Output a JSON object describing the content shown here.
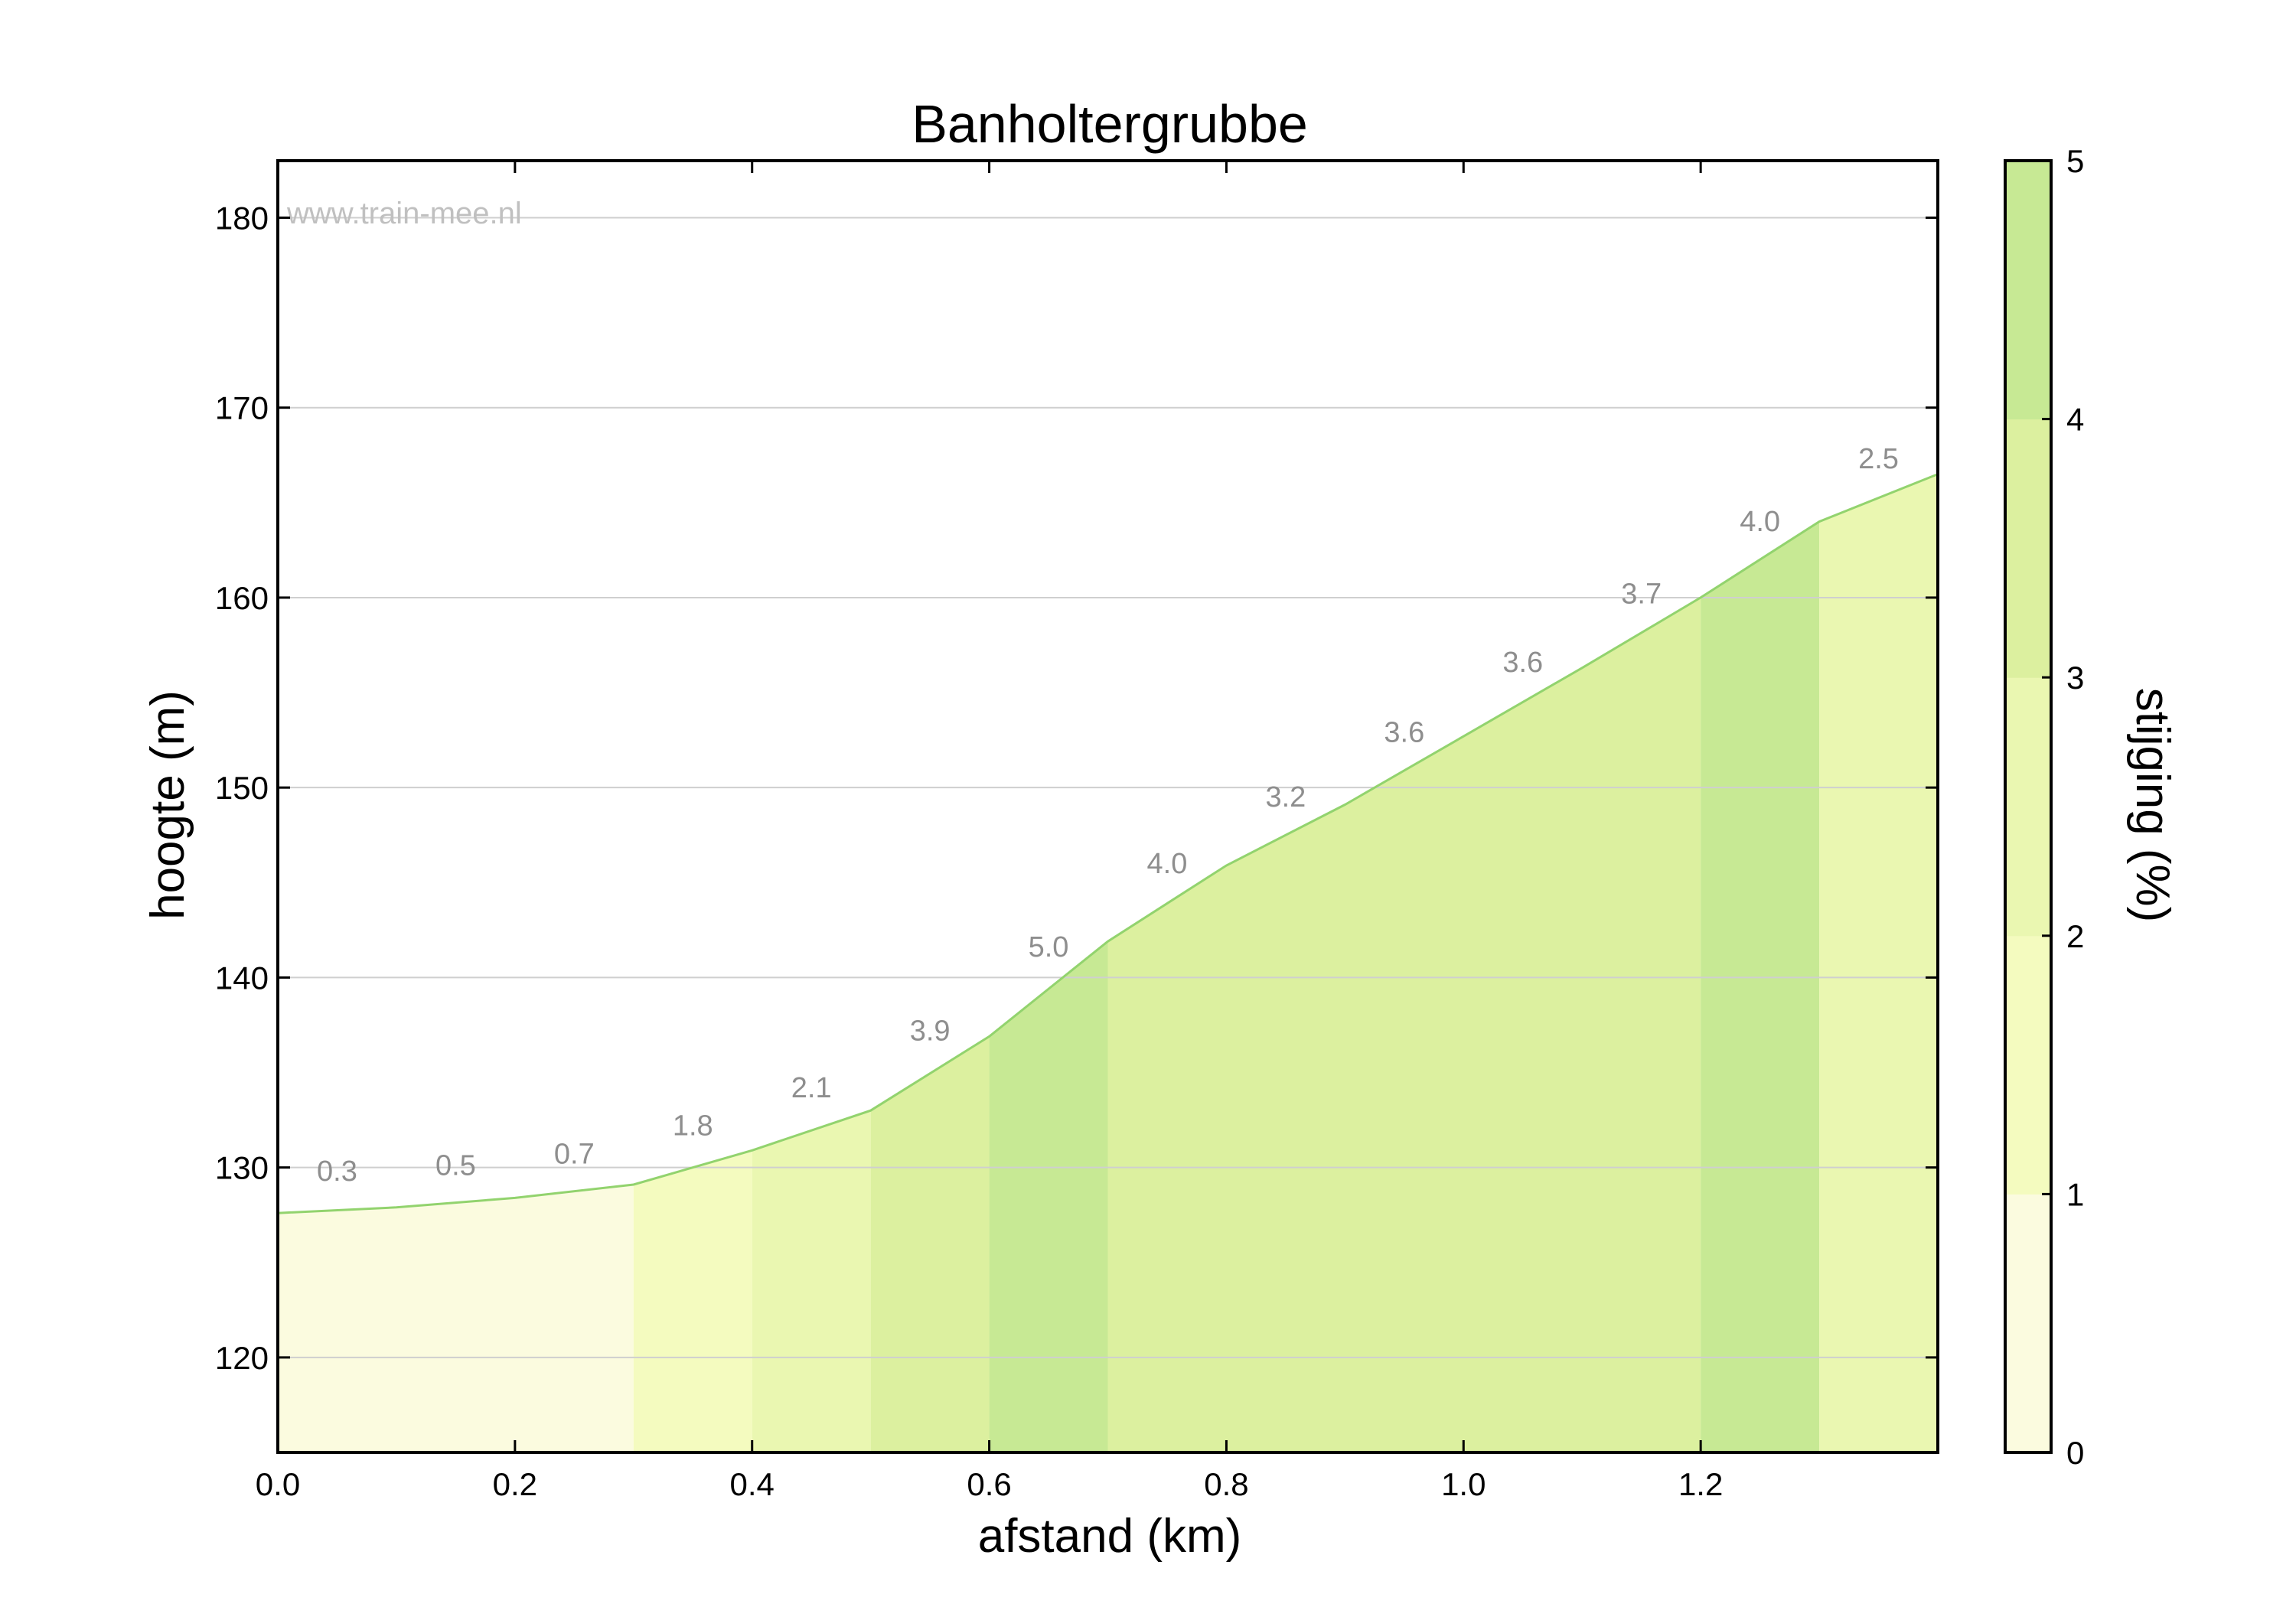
{
  "chart_data": {
    "type": "area",
    "title": "Banholtergrubbe",
    "xlabel": "afstand (km)",
    "ylabel": "hoogte (m)",
    "watermark": "www.train-mee.nl",
    "xlim": [
      0,
      1.4
    ],
    "ylim": [
      115,
      183
    ],
    "xticks": [
      "0.0",
      "0.2",
      "0.4",
      "0.6",
      "0.8",
      "1.0",
      "1.2"
    ],
    "yticks": [
      "120",
      "130",
      "140",
      "150",
      "160",
      "170",
      "180"
    ],
    "grid": "horizontal",
    "profile": {
      "x": [
        0.0,
        0.1,
        0.2,
        0.3,
        0.4,
        0.5,
        0.6,
        0.7,
        0.8,
        0.9,
        1.0,
        1.1,
        1.2,
        1.3,
        1.4
      ],
      "y": [
        127.6,
        127.9,
        128.4,
        129.1,
        130.9,
        133.0,
        136.9,
        141.9,
        145.9,
        149.1,
        152.7,
        156.3,
        160.0,
        164.0,
        166.5
      ]
    },
    "segments": [
      {
        "x0": 0.0,
        "x1": 0.3,
        "gradient": null,
        "color": "#fbfbdf"
      },
      {
        "x0": 0.3,
        "x1": 0.4,
        "gradient": 1.8,
        "color": "#f4fbbf"
      },
      {
        "x0": 0.4,
        "x1": 0.5,
        "gradient": 2.1,
        "color": "#eaf7b1"
      },
      {
        "x0": 0.5,
        "x1": 0.6,
        "gradient": 3.9,
        "color": "#dcf09f"
      },
      {
        "x0": 0.6,
        "x1": 0.7,
        "gradient": 5.0,
        "color": "#c7e994"
      },
      {
        "x0": 0.7,
        "x1": 1.2,
        "gradient": null,
        "color": "#dcf09f"
      },
      {
        "x0": 1.2,
        "x1": 1.3,
        "gradient": 4.0,
        "color": "#c7e994"
      },
      {
        "x0": 1.3,
        "x1": 1.4,
        "gradient": 2.5,
        "color": "#eaf7b1"
      }
    ],
    "slope_labels": [
      {
        "x": 0.05,
        "y": 129.3,
        "text": "0.3"
      },
      {
        "x": 0.15,
        "y": 129.6,
        "text": "0.5"
      },
      {
        "x": 0.25,
        "y": 130.2,
        "text": "0.7"
      },
      {
        "x": 0.35,
        "y": 131.7,
        "text": "1.8"
      },
      {
        "x": 0.45,
        "y": 133.7,
        "text": "2.1"
      },
      {
        "x": 0.55,
        "y": 136.7,
        "text": "3.9"
      },
      {
        "x": 0.65,
        "y": 141.1,
        "text": "5.0"
      },
      {
        "x": 0.75,
        "y": 145.5,
        "text": "4.0"
      },
      {
        "x": 0.85,
        "y": 149.0,
        "text": "3.2"
      },
      {
        "x": 0.95,
        "y": 152.4,
        "text": "3.6"
      },
      {
        "x": 1.05,
        "y": 156.1,
        "text": "3.6"
      },
      {
        "x": 1.15,
        "y": 159.7,
        "text": "3.7"
      },
      {
        "x": 1.25,
        "y": 163.5,
        "text": "4.0"
      },
      {
        "x": 1.35,
        "y": 166.8,
        "text": "2.5"
      }
    ],
    "line_color": "#92d36e",
    "colorbar": {
      "label": "stijging (%)",
      "range": [
        0,
        5
      ],
      "ticks": [
        "0",
        "1",
        "2",
        "3",
        "4",
        "5"
      ],
      "bands": [
        "#fbfbdf",
        "#f4fbbf",
        "#eaf7b1",
        "#dcf09f",
        "#c7e994"
      ]
    }
  }
}
